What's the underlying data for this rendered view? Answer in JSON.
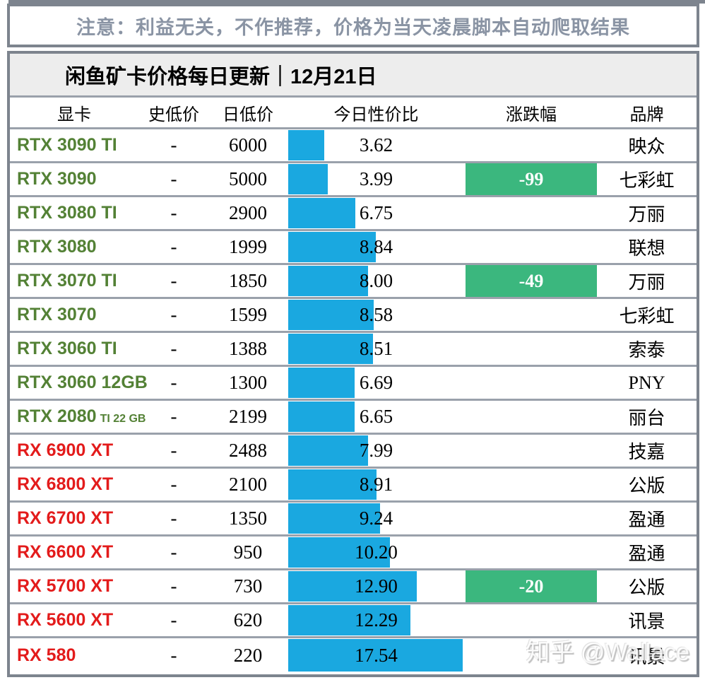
{
  "notice": "注意：利益无关，不作推荐，价格为当天凌晨脚本自动爬取结果",
  "title": "闲鱼矿卡价格每日更新｜12月21日",
  "columns": [
    "显卡",
    "史低价",
    "日低价",
    "今日性价比",
    "涨跌幅",
    "品牌"
  ],
  "watermark": "知乎 @Wallace",
  "colors": {
    "bar_blue": "#1AA8E0",
    "change_green": "#3BB77E",
    "nvidia_green": "#538135",
    "amd_red": "#E31B1B",
    "notice_gray": "#8A94A4",
    "border_dark": "#7D848E",
    "border_light": "#9AA1AB",
    "title_bg": "#EDEDED"
  },
  "rows": [
    {
      "gpu": "RTX 3090 TI",
      "gpu_small": "",
      "color": "green",
      "hist_low": "-",
      "day_low": "6000",
      "ratio": "3.62",
      "change": "",
      "brand": "映众"
    },
    {
      "gpu": "RTX 3090",
      "gpu_small": "",
      "color": "green",
      "hist_low": "-",
      "day_low": "5000",
      "ratio": "3.99",
      "change": "-99",
      "brand": "七彩虹"
    },
    {
      "gpu": "RTX 3080 TI",
      "gpu_small": "",
      "color": "green",
      "hist_low": "-",
      "day_low": "2900",
      "ratio": "6.75",
      "change": "",
      "brand": "万丽"
    },
    {
      "gpu": "RTX 3080",
      "gpu_small": "",
      "color": "green",
      "hist_low": "-",
      "day_low": "1999",
      "ratio": "8.84",
      "change": "",
      "brand": "联想"
    },
    {
      "gpu": "RTX 3070 TI",
      "gpu_small": "",
      "color": "green",
      "hist_low": "-",
      "day_low": "1850",
      "ratio": "8.00",
      "change": "-49",
      "brand": "万丽"
    },
    {
      "gpu": "RTX 3070",
      "gpu_small": "",
      "color": "green",
      "hist_low": "-",
      "day_low": "1599",
      "ratio": "8.58",
      "change": "",
      "brand": "七彩虹"
    },
    {
      "gpu": "RTX 3060 TI",
      "gpu_small": "",
      "color": "green",
      "hist_low": "-",
      "day_low": "1388",
      "ratio": "8.51",
      "change": "",
      "brand": "索泰"
    },
    {
      "gpu": "RTX 3060 12GB",
      "gpu_small": "",
      "color": "green",
      "hist_low": "-",
      "day_low": "1300",
      "ratio": "6.69",
      "change": "",
      "brand": "PNY"
    },
    {
      "gpu": "RTX 2080",
      "gpu_small": "TI 22 GB",
      "color": "green",
      "hist_low": "-",
      "day_low": "2199",
      "ratio": "6.65",
      "change": "",
      "brand": "丽台"
    },
    {
      "gpu": "RX 6900 XT",
      "gpu_small": "",
      "color": "red",
      "hist_low": "-",
      "day_low": "2488",
      "ratio": "7.99",
      "change": "",
      "brand": "技嘉"
    },
    {
      "gpu": "RX 6800 XT",
      "gpu_small": "",
      "color": "red",
      "hist_low": "-",
      "day_low": "2100",
      "ratio": "8.91",
      "change": "",
      "brand": "公版"
    },
    {
      "gpu": "RX 6700 XT",
      "gpu_small": "",
      "color": "red",
      "hist_low": "-",
      "day_low": "1350",
      "ratio": "9.24",
      "change": "",
      "brand": "盈通"
    },
    {
      "gpu": "RX 6600 XT",
      "gpu_small": "",
      "color": "red",
      "hist_low": "-",
      "day_low": "950",
      "ratio": "10.20",
      "change": "",
      "brand": "盈通"
    },
    {
      "gpu": "RX 5700 XT",
      "gpu_small": "",
      "color": "red",
      "hist_low": "-",
      "day_low": "730",
      "ratio": "12.90",
      "change": "-20",
      "brand": "公版"
    },
    {
      "gpu": "RX 5600 XT",
      "gpu_small": "",
      "color": "red",
      "hist_low": "-",
      "day_low": "620",
      "ratio": "12.29",
      "change": "",
      "brand": "讯景"
    },
    {
      "gpu": "RX 580",
      "gpu_small": "",
      "color": "red",
      "hist_low": "-",
      "day_low": "220",
      "ratio": "17.54",
      "change": "",
      "brand": "讯景"
    }
  ],
  "chart_data": {
    "type": "bar",
    "title": "闲鱼矿卡价格每日更新｜12月21日",
    "subtitle": "注意：利益无关，不作推荐，价格为当天凌晨脚本自动爬取结果",
    "orientation": "horizontal",
    "categories": [
      "RTX 3090 TI",
      "RTX 3090",
      "RTX 3080 TI",
      "RTX 3080",
      "RTX 3070 TI",
      "RTX 3070",
      "RTX 3060 TI",
      "RTX 3060 12GB",
      "RTX 2080 TI 22 GB",
      "RX 6900 XT",
      "RX 6800 XT",
      "RX 6700 XT",
      "RX 6600 XT",
      "RX 5700 XT",
      "RX 5600 XT",
      "RX 580"
    ],
    "series": [
      {
        "name": "今日性价比",
        "values": [
          3.62,
          3.99,
          6.75,
          8.84,
          8.0,
          8.58,
          8.51,
          6.69,
          6.65,
          7.99,
          8.91,
          9.24,
          10.2,
          12.9,
          12.29,
          17.54
        ]
      },
      {
        "name": "日低价",
        "values": [
          6000,
          5000,
          2900,
          1999,
          1850,
          1599,
          1388,
          1300,
          2199,
          2488,
          2100,
          1350,
          950,
          730,
          620,
          220
        ]
      },
      {
        "name": "涨跌幅",
        "values": [
          null,
          -99,
          null,
          null,
          -49,
          null,
          null,
          null,
          null,
          null,
          null,
          null,
          null,
          -20,
          null,
          null
        ]
      },
      {
        "name": "品牌",
        "values": [
          "映众",
          "七彩虹",
          "万丽",
          "联想",
          "万丽",
          "七彩虹",
          "索泰",
          "PNY",
          "丽台",
          "技嘉",
          "公版",
          "盈通",
          "盈通",
          "公版",
          "讯景",
          "讯景"
        ]
      }
    ],
    "xlabel": "今日性价比",
    "ylabel": "显卡",
    "xlim": [
      0,
      17.54
    ],
    "grid": false,
    "legend_position": "none",
    "bar_color": "#1AA8E0"
  }
}
